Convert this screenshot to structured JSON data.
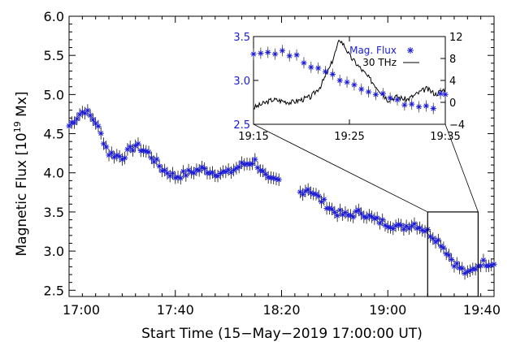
{
  "chart_data": [
    {
      "type": "scatter",
      "xlabel": "Start Time (15−May−2019 17:00:00 UT)",
      "ylabel_main": "Magnetic Flux [10",
      "ylabel_exp": "19",
      "ylabel_unit": " Mx]",
      "xlim": [
        0,
        160
      ],
      "ylim": [
        2.42,
        6.0
      ],
      "xticks": [
        0,
        40,
        80,
        120,
        160
      ],
      "xtick_labels": [
        "17:00",
        "17:40",
        "18:20",
        "19:00",
        "19:40"
      ],
      "yticks": [
        2.5,
        3.0,
        3.5,
        4.0,
        4.5,
        5.0,
        5.5,
        6.0
      ],
      "ytick_labels": [
        "2.5",
        "3.0",
        "3.5",
        "4.0",
        "4.5",
        "5.0",
        "5.5",
        "6.0"
      ],
      "marker": "asterisk",
      "error_bar": 0.08,
      "gap_minutes": [
        79,
        87
      ],
      "series": [
        {
          "color": "#1a1ad6",
          "x_start": 0,
          "x_step": 1,
          "x_end": 160,
          "y_anchor_minutes": [
            0,
            4,
            6,
            10,
            15,
            20,
            25,
            30,
            35,
            40,
            45,
            50,
            55,
            60,
            65,
            70,
            75,
            79,
            87,
            90,
            95,
            100,
            105,
            110,
            115,
            120,
            125,
            130,
            135,
            140,
            145,
            150,
            155,
            160
          ],
          "y_anchor_values": [
            4.6,
            4.75,
            4.8,
            4.65,
            4.25,
            4.2,
            4.35,
            4.25,
            4.05,
            3.95,
            4.0,
            4.05,
            4.0,
            4.0,
            4.1,
            4.15,
            3.9,
            3.9,
            3.75,
            3.8,
            3.65,
            3.5,
            3.45,
            3.5,
            3.4,
            3.35,
            3.3,
            3.35,
            3.25,
            3.1,
            2.85,
            2.7,
            2.85,
            2.85
          ]
        }
      ],
      "zoom_box": {
        "x": [
          135,
          154
        ],
        "y": [
          2.42,
          3.5
        ]
      }
    },
    {
      "type": "line",
      "x": [
        0,
        20
      ],
      "xticks": [
        0,
        10,
        20
      ],
      "xtick_labels": [
        "19:15",
        "19:25",
        "19:35"
      ],
      "ylim_left": [
        2.5,
        3.5
      ],
      "yticks_left": [
        2.5,
        3.0,
        3.5
      ],
      "ytick_labels_left": [
        "2.5",
        "3.0",
        "3.5"
      ],
      "ylim_right": [
        -4,
        12
      ],
      "yticks_right": [
        -4,
        0,
        4,
        8,
        12
      ],
      "ytick_labels_right": [
        "−4",
        "0",
        "4",
        "8",
        "12"
      ],
      "series": [
        {
          "name": "Mag. Flux",
          "color": "#1a1ad6",
          "axis": "left",
          "marker": "asterisk",
          "x": [
            0,
            0.75,
            1.5,
            2.25,
            3,
            3.75,
            4.5,
            5.25,
            6,
            6.75,
            7.5,
            8.25,
            9,
            9.75,
            10.5,
            11.25,
            12,
            12.75,
            13.5,
            14.25,
            15,
            15.75,
            16.5,
            17.25,
            18,
            18.75,
            19.5,
            20
          ],
          "y": [
            3.3,
            3.31,
            3.32,
            3.3,
            3.34,
            3.28,
            3.29,
            3.2,
            3.15,
            3.14,
            3.1,
            3.07,
            3.0,
            2.98,
            2.95,
            2.9,
            2.87,
            2.84,
            2.85,
            2.8,
            2.78,
            2.72,
            2.73,
            2.7,
            2.71,
            2.68,
            2.85,
            2.84
          ]
        },
        {
          "name": "30 THz",
          "color": "#000000",
          "axis": "right",
          "x": [
            0,
            2,
            4,
            6,
            7,
            8,
            8.5,
            9,
            9.6,
            10,
            11,
            12,
            13,
            14,
            15,
            16,
            17,
            18,
            19,
            20
          ],
          "y": [
            -1,
            0.5,
            0,
            1,
            3,
            6.5,
            9,
            11.5,
            10,
            8.5,
            6.5,
            4.5,
            2.5,
            0.5,
            1,
            0.5,
            1.5,
            2.5,
            1.5,
            2.5
          ]
        }
      ]
    }
  ]
}
